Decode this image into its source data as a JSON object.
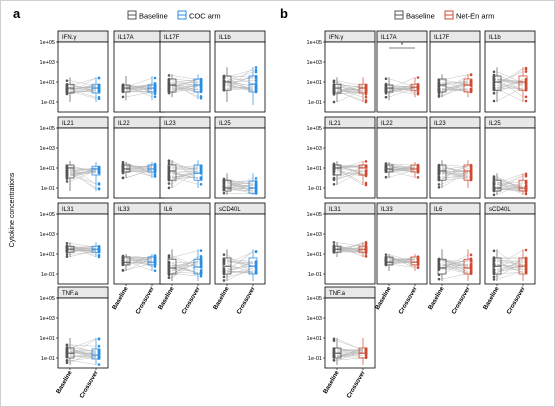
{
  "colors": {
    "baseline": "#555555",
    "coc": "#2a8ee6",
    "neten": "#cf4b33",
    "link": "#bbbbbb",
    "strip": "#e8e8e8",
    "frame": "#000000"
  },
  "chart_data": [
    {
      "type": "box",
      "panel_label": "a",
      "legend": {
        "items": [
          "Baseline",
          "COC arm"
        ],
        "placement": "top"
      },
      "ylabel": "Cytokine concentrations",
      "yscale": "log10",
      "ylim": [
        0.01,
        100000
      ],
      "yticks": [
        "1e+05",
        "1e+03",
        "1e+01",
        "1e-01"
      ],
      "categories": [
        "Baseline",
        "Crossover"
      ],
      "facets": [
        {
          "name": "IFN.γ",
          "series": [
            {
              "name": "Baseline",
              "median": 2.5,
              "q1": 0.8,
              "q3": 6,
              "min": 0.1,
              "max": 30
            },
            {
              "name": "Crossover",
              "median": 2.5,
              "q1": 0.8,
              "q3": 6,
              "min": 0.1,
              "max": 30
            }
          ]
        },
        {
          "name": "IL17A",
          "series": [
            {
              "name": "Baseline",
              "median": 2.5,
              "q1": 1,
              "q3": 5,
              "min": 0.15,
              "max": 40
            },
            {
              "name": "Crossover",
              "median": 2.5,
              "q1": 1,
              "q3": 5,
              "min": 0.15,
              "max": 40
            }
          ]
        },
        {
          "name": "IL17F",
          "series": [
            {
              "name": "Baseline",
              "median": 5,
              "q1": 1,
              "q3": 20,
              "min": 0.3,
              "max": 60
            },
            {
              "name": "Crossover",
              "median": 5,
              "q1": 1,
              "q3": 20,
              "min": 0.2,
              "max": 60
            }
          ]
        },
        {
          "name": "IL1b",
          "series": [
            {
              "name": "Baseline",
              "median": 10,
              "q1": 1.5,
              "q3": 40,
              "min": 0.1,
              "max": 300
            },
            {
              "name": "Crossover",
              "median": 6,
              "q1": 1,
              "q3": 40,
              "min": 0.05,
              "max": 300
            }
          ]
        },
        {
          "name": "IL21",
          "series": [
            {
              "name": "Baseline",
              "median": 10,
              "q1": 1,
              "q3": 20,
              "min": 0.05,
              "max": 50
            },
            {
              "name": "Crossover",
              "median": 8,
              "q1": 2,
              "q3": 15,
              "min": 0.05,
              "max": 40
            }
          ]
        },
        {
          "name": "IL22",
          "series": [
            {
              "name": "Baseline",
              "median": 8,
              "q1": 4,
              "q3": 20,
              "min": 1,
              "max": 40
            },
            {
              "name": "Crossover",
              "median": 8,
              "q1": 4,
              "q3": 20,
              "min": 1,
              "max": 40
            }
          ]
        },
        {
          "name": "IL23",
          "series": [
            {
              "name": "Baseline",
              "median": 5,
              "q1": 0.6,
              "q3": 20,
              "min": 0.1,
              "max": 60
            },
            {
              "name": "Crossover",
              "median": 3,
              "q1": 0.6,
              "q3": 20,
              "min": 0.1,
              "max": 60
            }
          ]
        },
        {
          "name": "IL25",
          "series": [
            {
              "name": "Baseline",
              "median": 0.1,
              "q1": 0.05,
              "q3": 0.6,
              "min": 0.02,
              "max": 3
            },
            {
              "name": "Crossover",
              "median": 0.1,
              "q1": 0.03,
              "q3": 0.5,
              "min": 0.02,
              "max": 3
            }
          ]
        },
        {
          "name": "IL31",
          "series": [
            {
              "name": "Baseline",
              "median": 30,
              "q1": 15,
              "q3": 60,
              "min": 5,
              "max": 150
            },
            {
              "name": "Crossover",
              "median": 30,
              "q1": 15,
              "q3": 60,
              "min": 5,
              "max": 150
            }
          ]
        },
        {
          "name": "IL33",
          "series": [
            {
              "name": "Baseline",
              "median": 1.5,
              "q1": 0.8,
              "q3": 5,
              "min": 0.2,
              "max": 10
            },
            {
              "name": "Crossover",
              "median": 1.5,
              "q1": 0.8,
              "q3": 5,
              "min": 0.2,
              "max": 10
            }
          ]
        },
        {
          "name": "IL6",
          "series": [
            {
              "name": "Baseline",
              "median": 0.4,
              "q1": 0.1,
              "q3": 3,
              "min": 0.02,
              "max": 30
            },
            {
              "name": "Crossover",
              "median": 0.5,
              "q1": 0.1,
              "q3": 3,
              "min": 0.02,
              "max": 30
            }
          ]
        },
        {
          "name": "sCD40L",
          "series": [
            {
              "name": "Baseline",
              "median": 0.6,
              "q1": 0.1,
              "q3": 4,
              "min": 0.02,
              "max": 30
            },
            {
              "name": "Crossover",
              "median": 0.6,
              "q1": 0.1,
              "q3": 4,
              "min": 0.02,
              "max": 30
            }
          ]
        },
        {
          "name": "TNF.a",
          "series": [
            {
              "name": "Baseline",
              "median": 0.3,
              "q1": 0.1,
              "q3": 1,
              "min": 0.02,
              "max": 10
            },
            {
              "name": "Crossover",
              "median": 0.2,
              "q1": 0.08,
              "q3": 0.8,
              "min": 0.02,
              "max": 10
            }
          ]
        }
      ],
      "annotations": []
    },
    {
      "type": "box",
      "panel_label": "b",
      "legend": {
        "items": [
          "Baseline",
          "Net-En arm"
        ],
        "placement": "top"
      },
      "ylabel": "",
      "yscale": "log10",
      "ylim": [
        0.01,
        100000
      ],
      "yticks": [
        "1e+05",
        "1e+03",
        "1e+01",
        "1e-01"
      ],
      "categories": [
        "Baseline",
        "Crossover"
      ],
      "facets": [
        {
          "name": "IFN.γ",
          "series": [
            {
              "name": "Baseline",
              "median": 2.5,
              "q1": 0.8,
              "q3": 6,
              "min": 0.1,
              "max": 30
            },
            {
              "name": "Crossover",
              "median": 2.5,
              "q1": 0.8,
              "q3": 6,
              "min": 0.1,
              "max": 30
            }
          ]
        },
        {
          "name": "IL17A",
          "series": [
            {
              "name": "Baseline",
              "median": 2.5,
              "q1": 1,
              "q3": 5,
              "min": 0.15,
              "max": 30
            },
            {
              "name": "Crossover",
              "median": 3,
              "q1": 1.5,
              "q3": 6,
              "min": 0.3,
              "max": 30
            }
          ]
        },
        {
          "name": "IL17F",
          "series": [
            {
              "name": "Baseline",
              "median": 5,
              "q1": 1,
              "q3": 20,
              "min": 0.3,
              "max": 60
            },
            {
              "name": "Crossover",
              "median": 5,
              "q1": 1,
              "q3": 20,
              "min": 0.3,
              "max": 60
            }
          ]
        },
        {
          "name": "IL1b",
          "series": [
            {
              "name": "Baseline",
              "median": 10,
              "q1": 1.5,
              "q3": 40,
              "min": 0.1,
              "max": 300
            },
            {
              "name": "Crossover",
              "median": 10,
              "q1": 1.5,
              "q3": 40,
              "min": 0.1,
              "max": 300
            }
          ]
        },
        {
          "name": "IL21",
          "series": [
            {
              "name": "Baseline",
              "median": 10,
              "q1": 2,
              "q3": 20,
              "min": 0.2,
              "max": 50
            },
            {
              "name": "Crossover",
              "median": 10,
              "q1": 2,
              "q3": 20,
              "min": 0.2,
              "max": 50
            }
          ]
        },
        {
          "name": "IL22",
          "series": [
            {
              "name": "Baseline",
              "median": 8,
              "q1": 4,
              "q3": 20,
              "min": 1,
              "max": 40
            },
            {
              "name": "Crossover",
              "median": 8,
              "q1": 4,
              "q3": 20,
              "min": 1,
              "max": 40
            }
          ]
        },
        {
          "name": "IL23",
          "series": [
            {
              "name": "Baseline",
              "median": 5,
              "q1": 0.6,
              "q3": 20,
              "min": 0.1,
              "max": 60
            },
            {
              "name": "Crossover",
              "median": 5,
              "q1": 0.6,
              "q3": 20,
              "min": 0.1,
              "max": 60
            }
          ]
        },
        {
          "name": "IL25",
          "series": [
            {
              "name": "Baseline",
              "median": 0.1,
              "q1": 0.05,
              "q3": 0.6,
              "min": 0.02,
              "max": 3
            },
            {
              "name": "Crossover",
              "median": 0.1,
              "q1": 0.05,
              "q3": 0.6,
              "min": 0.02,
              "max": 3
            }
          ]
        },
        {
          "name": "IL31",
          "series": [
            {
              "name": "Baseline",
              "median": 30,
              "q1": 15,
              "q3": 60,
              "min": 5,
              "max": 150
            },
            {
              "name": "Crossover",
              "median": 30,
              "q1": 15,
              "q3": 60,
              "min": 5,
              "max": 150
            }
          ]
        },
        {
          "name": "IL33",
          "series": [
            {
              "name": "Baseline",
              "median": 1.5,
              "q1": 0.8,
              "q3": 5,
              "min": 0.2,
              "max": 10
            },
            {
              "name": "Crossover",
              "median": 1.5,
              "q1": 0.8,
              "q3": 5,
              "min": 0.2,
              "max": 10
            }
          ]
        },
        {
          "name": "IL6",
          "series": [
            {
              "name": "Baseline",
              "median": 0.4,
              "q1": 0.1,
              "q3": 3,
              "min": 0.02,
              "max": 30
            },
            {
              "name": "Crossover",
              "median": 0.4,
              "q1": 0.1,
              "q3": 3,
              "min": 0.02,
              "max": 30
            }
          ]
        },
        {
          "name": "sCD40L",
          "series": [
            {
              "name": "Baseline",
              "median": 0.6,
              "q1": 0.1,
              "q3": 4,
              "min": 0.02,
              "max": 30
            },
            {
              "name": "Crossover",
              "median": 0.6,
              "q1": 0.1,
              "q3": 4,
              "min": 0.02,
              "max": 30
            }
          ]
        },
        {
          "name": "TNF.a",
          "series": [
            {
              "name": "Baseline",
              "median": 0.3,
              "q1": 0.1,
              "q3": 1,
              "min": 0.02,
              "max": 10
            },
            {
              "name": "Crossover",
              "median": 0.3,
              "q1": 0.1,
              "q3": 1,
              "min": 0.02,
              "max": 10
            }
          ]
        }
      ],
      "annotations": [
        {
          "facet": "IL17A",
          "text": "*"
        }
      ]
    }
  ]
}
